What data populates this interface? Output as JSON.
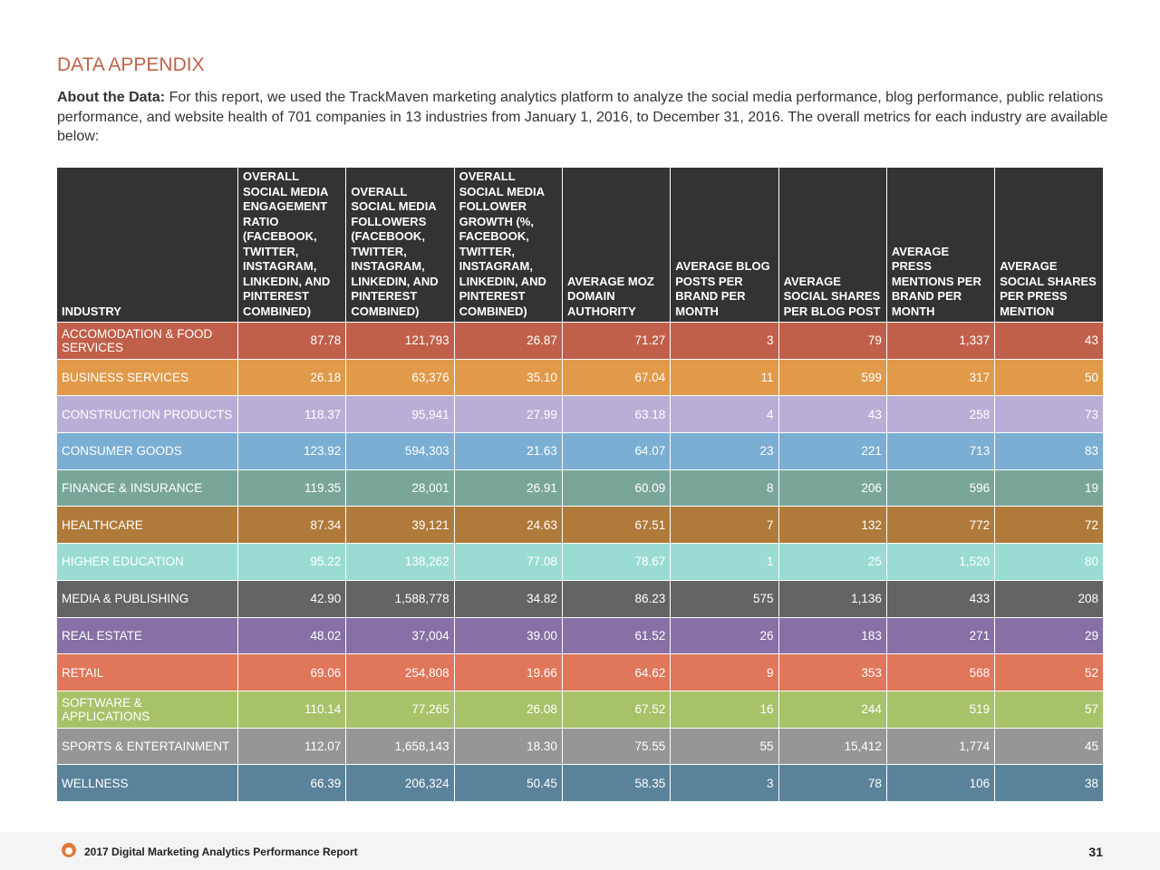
{
  "header": {
    "title": "DATA APPENDIX"
  },
  "intro": {
    "label": "About the Data:",
    "text": "For this report, we used the TrackMaven marketing analytics platform to analyze the social media performance, blog performance, public relations performance, and website health of 701 companies in 13 industries from January 1, 2016, to December 31, 2016. The overall metrics for each industry are available below:"
  },
  "table": {
    "columns": [
      "INDUSTRY",
      "OVERALL SOCIAL MEDIA ENGAGEMENT RATIO (FACEBOOK, TWITTER, INSTAGRAM, LINKEDIN, AND PINTEREST COMBINED)",
      "OVERALL SOCIAL MEDIA FOLLOWERS (FACEBOOK, TWITTER, INSTAGRAM, LINKEDIN, AND PINTEREST COMBINED)",
      "OVERALL SOCIAL MEDIA FOLLOWER GROWTH (%, FACEBOOK, TWITTER, INSTAGRAM, LINKEDIN, AND PINTEREST COMBINED)",
      "AVERAGE MOZ DOMAIN AUTHORITY",
      "AVERAGE BLOG POSTS PER BRAND PER MONTH",
      "AVERAGE SOCIAL SHARES PER BLOG POST",
      "AVERAGE PRESS MENTIONS PER BRAND PER MONTH",
      "AVERAGE SOCIAL SHARES PER PRESS MENTION"
    ],
    "rows": [
      [
        "ACCOMODATION & FOOD SERVICES",
        "87.78",
        "121,793",
        "26.87",
        "71.27",
        "3",
        "79",
        "1,337",
        "43"
      ],
      [
        "BUSINESS SERVICES",
        "26.18",
        "63,376",
        "35.10",
        "67.04",
        "11",
        "599",
        "317",
        "50"
      ],
      [
        "CONSTRUCTION PRODUCTS",
        "118.37",
        "95,941",
        "27.99",
        "63.18",
        "4",
        "43",
        "258",
        "73"
      ],
      [
        "CONSUMER GOODS",
        "123.92",
        "594,303",
        "21.63",
        "64.07",
        "23",
        "221",
        "713",
        "83"
      ],
      [
        "FINANCE & INSURANCE",
        "119.35",
        "28,001",
        "26.91",
        "60.09",
        "8",
        "206",
        "596",
        "19"
      ],
      [
        "HEALTHCARE",
        "87.34",
        "39,121",
        "24.63",
        "67.51",
        "7",
        "132",
        "772",
        "72"
      ],
      [
        "HIGHER EDUCATION",
        "95.22",
        "138,262",
        "77.08",
        "78.67",
        "1",
        "25",
        "1,520",
        "80"
      ],
      [
        "MEDIA & PUBLISHING",
        "42.90",
        "1,588,778",
        "34.82",
        "86.23",
        "575",
        "1,136",
        "433",
        "208"
      ],
      [
        "REAL ESTATE",
        "48.02",
        "37,004",
        "39.00",
        "61.52",
        "26",
        "183",
        "271",
        "29"
      ],
      [
        "RETAIL",
        "69.06",
        "254,808",
        "19.66",
        "64.62",
        "9",
        "353",
        "568",
        "52"
      ],
      [
        "SOFTWARE & APPLICATIONS",
        "110.14",
        "77,265",
        "26.08",
        "67.52",
        "16",
        "244",
        "519",
        "57"
      ],
      [
        "SPORTS & ENTERTAINMENT",
        "112.07",
        "1,658,143",
        "18.30",
        "75.55",
        "55",
        "15,412",
        "1,774",
        "45"
      ],
      [
        "WELLNESS",
        "66.39",
        "206,324",
        "50.45",
        "58.35",
        "3",
        "78",
        "106",
        "38"
      ]
    ]
  },
  "footer": {
    "report": "2017 Digital Marketing Analytics Performance Report",
    "page": "31"
  }
}
